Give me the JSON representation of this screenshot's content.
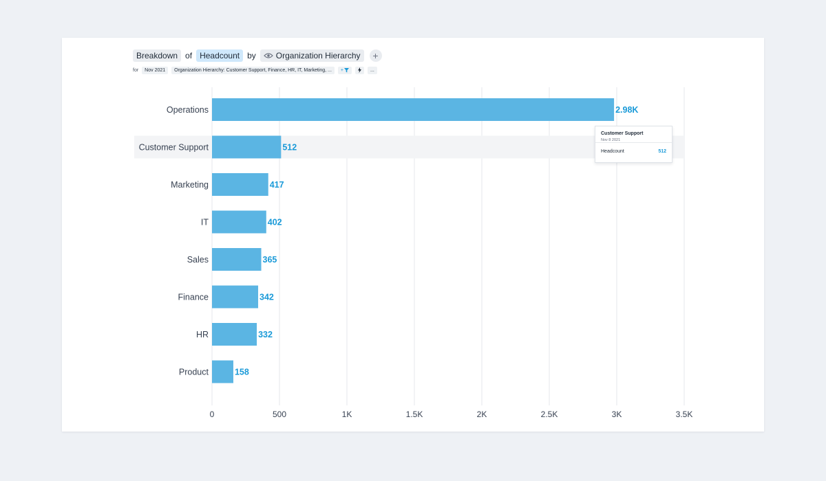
{
  "query": {
    "breakdown_word": "Breakdown",
    "of_word": "of",
    "metric": "Headcount",
    "by_word": "by",
    "dimension": "Organization Hierarchy",
    "add_symbol": "+"
  },
  "filters": {
    "for_word": "for",
    "date": "Nov 2021",
    "hierarchy_filter": "Organization Hierarchy: Customer Support, Finance, HR, IT, Marketing, ...",
    "add_filter_symbol": "+",
    "more_symbol": "..."
  },
  "tooltip": {
    "title": "Customer Support",
    "date": "Nov 8 2021",
    "metric_label": "Headcount",
    "value": "512"
  },
  "colors": {
    "bar": "#5bb5e3",
    "label": "#1a9ad8",
    "highlight_row": "#f3f4f6",
    "grid": "#e5e7eb"
  },
  "chart_data": {
    "type": "bar",
    "orientation": "horizontal",
    "categories": [
      "Operations",
      "Customer Support",
      "Marketing",
      "IT",
      "Sales",
      "Finance",
      "HR",
      "Product"
    ],
    "values": [
      2980,
      512,
      417,
      402,
      365,
      342,
      332,
      158
    ],
    "value_labels": [
      "2.98K",
      "512",
      "417",
      "402",
      "365",
      "342",
      "332",
      "158"
    ],
    "xlim": [
      0,
      3500
    ],
    "xticks": [
      0,
      500,
      1000,
      1500,
      2000,
      2500,
      3000,
      3500
    ],
    "xtick_labels": [
      "0",
      "500",
      "1K",
      "1.5K",
      "2K",
      "2.5K",
      "3K",
      "3.5K"
    ],
    "highlighted_category": "Customer Support",
    "grid": true
  }
}
